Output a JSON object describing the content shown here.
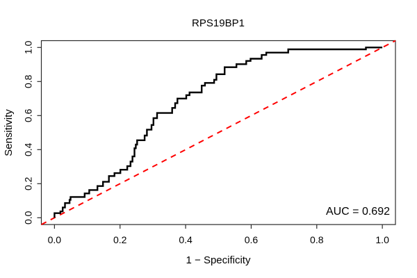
{
  "window": {
    "background": "#ffffff"
  },
  "chart_data": {
    "type": "line",
    "subtype": "roc-curve",
    "title": "RPS19BP1",
    "xlabel": "1 − Specificity",
    "ylabel": "Sensitivity",
    "annotation": "AUC = 0.692",
    "auc_value": 0.692,
    "grid": false,
    "legend": "none",
    "xlim": [
      -0.04,
      1.04
    ],
    "ylim": [
      -0.04,
      1.04
    ],
    "x_tick_values": [
      0.0,
      0.2,
      0.4,
      0.6,
      0.8,
      1.0
    ],
    "x_tick_labels": [
      "0.0",
      "0.2",
      "0.4",
      "0.6",
      "0.8",
      "1.0"
    ],
    "y_tick_values": [
      0.0,
      0.2,
      0.4,
      0.6,
      0.8,
      1.0
    ],
    "y_tick_labels": [
      "0.0",
      "0.2",
      "0.4",
      "0.6",
      "0.8",
      "1.0"
    ],
    "curve_color": "#000000",
    "reference_line": {
      "from": [
        -0.04,
        -0.04
      ],
      "to": [
        1.04,
        1.04
      ],
      "color": "#ff0000",
      "style": "dashed"
    },
    "roc_start": [
      0.0,
      0.0
    ],
    "roc_end": [
      1.0,
      1.0
    ],
    "roc_steps": [
      [
        0.0,
        0.027
      ],
      [
        0.018,
        0.037
      ],
      [
        0.025,
        0.06
      ],
      [
        0.032,
        0.086
      ],
      [
        0.046,
        0.105
      ],
      [
        0.049,
        0.122
      ],
      [
        0.092,
        0.143
      ],
      [
        0.106,
        0.163
      ],
      [
        0.131,
        0.186
      ],
      [
        0.148,
        0.211
      ],
      [
        0.166,
        0.245
      ],
      [
        0.183,
        0.262
      ],
      [
        0.201,
        0.282
      ],
      [
        0.222,
        0.303
      ],
      [
        0.232,
        0.33
      ],
      [
        0.238,
        0.36
      ],
      [
        0.244,
        0.408
      ],
      [
        0.248,
        0.43
      ],
      [
        0.252,
        0.455
      ],
      [
        0.275,
        0.483
      ],
      [
        0.282,
        0.517
      ],
      [
        0.296,
        0.545
      ],
      [
        0.302,
        0.585
      ],
      [
        0.313,
        0.615
      ],
      [
        0.359,
        0.645
      ],
      [
        0.368,
        0.673
      ],
      [
        0.375,
        0.7
      ],
      [
        0.402,
        0.72
      ],
      [
        0.412,
        0.736
      ],
      [
        0.449,
        0.776
      ],
      [
        0.459,
        0.792
      ],
      [
        0.487,
        0.81
      ],
      [
        0.494,
        0.843
      ],
      [
        0.519,
        0.884
      ],
      [
        0.555,
        0.902
      ],
      [
        0.585,
        0.921
      ],
      [
        0.598,
        0.934
      ],
      [
        0.632,
        0.956
      ],
      [
        0.646,
        0.97
      ],
      [
        0.713,
        0.989
      ],
      [
        0.95,
        1.0
      ]
    ]
  }
}
